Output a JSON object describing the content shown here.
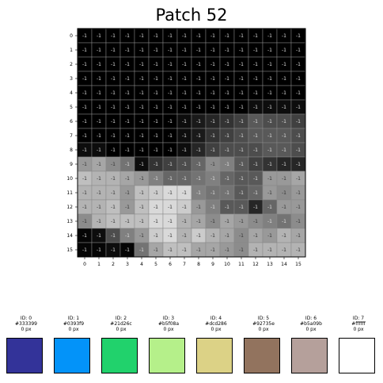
{
  "title": "Patch 52",
  "chart_data": {
    "type": "heatmap",
    "title": "Patch 52",
    "x_ticks": [
      "0",
      "1",
      "2",
      "3",
      "4",
      "5",
      "6",
      "7",
      "8",
      "9",
      "10",
      "11",
      "12",
      "13",
      "14",
      "15"
    ],
    "y_ticks": [
      "0",
      "1",
      "2",
      "3",
      "4",
      "5",
      "6",
      "7",
      "8",
      "9",
      "10",
      "11",
      "12",
      "13",
      "14",
      "15"
    ],
    "cell_label": "-1",
    "colormap": "gray",
    "gridlines": true,
    "values": [
      [
        0,
        0,
        0,
        0,
        0,
        0,
        0,
        0,
        0,
        0,
        0,
        0,
        0,
        0,
        0,
        0
      ],
      [
        0,
        0,
        0,
        0,
        0,
        0,
        0,
        0,
        0,
        0,
        0,
        0,
        0,
        0,
        0,
        0
      ],
      [
        0,
        0,
        0,
        0,
        0,
        0,
        0,
        0,
        0,
        0,
        0,
        0,
        0,
        0,
        0,
        0
      ],
      [
        0,
        0,
        0,
        0,
        0,
        0,
        0,
        0,
        0,
        0,
        0,
        0,
        0,
        0,
        0,
        0
      ],
      [
        0,
        0,
        0,
        0,
        0,
        0,
        0,
        0,
        0,
        0,
        0,
        0,
        0,
        0,
        0,
        0
      ],
      [
        0,
        0,
        0,
        0,
        0,
        0,
        0,
        0,
        0,
        0,
        0,
        0,
        0.05,
        0.05,
        0.05,
        0.05
      ],
      [
        0,
        0,
        0,
        0,
        0,
        0,
        0,
        0.05,
        0.1,
        0.15,
        0.2,
        0.25,
        0.35,
        0.3,
        0.3,
        0.25
      ],
      [
        0,
        0,
        0,
        0,
        0,
        0,
        0,
        0.05,
        0.1,
        0.2,
        0.25,
        0.3,
        0.35,
        0.35,
        0.35,
        0.3
      ],
      [
        0.05,
        0.05,
        0,
        0,
        0,
        0,
        0,
        0.05,
        0.15,
        0.25,
        0.3,
        0.3,
        0.3,
        0.35,
        0.35,
        0.3
      ],
      [
        0.6,
        0.65,
        0.55,
        0.45,
        0.05,
        0.2,
        0.25,
        0.3,
        0.4,
        0.55,
        0.5,
        0.35,
        0.25,
        0.2,
        0.15,
        0.15
      ],
      [
        0.75,
        0.7,
        0.7,
        0.65,
        0.6,
        0.5,
        0.4,
        0.4,
        0.45,
        0.5,
        0.4,
        0.35,
        0.35,
        0.6,
        0.6,
        0.65
      ],
      [
        0.7,
        0.7,
        0.7,
        0.6,
        0.75,
        0.8,
        0.85,
        0.85,
        0.5,
        0.45,
        0.45,
        0.35,
        0.4,
        0.6,
        0.55,
        0.6
      ],
      [
        0.7,
        0.7,
        0.75,
        0.6,
        0.75,
        0.85,
        0.85,
        0.8,
        0.6,
        0.5,
        0.35,
        0.35,
        0.15,
        0.4,
        0.6,
        0.6
      ],
      [
        0.55,
        0.7,
        0.75,
        0.75,
        0.75,
        0.85,
        0.85,
        0.7,
        0.65,
        0.55,
        0.65,
        0.6,
        0.55,
        0.5,
        0.45,
        0.55
      ],
      [
        0.02,
        0.05,
        0.3,
        0.5,
        0.6,
        0.8,
        0.85,
        0.7,
        0.8,
        0.7,
        0.65,
        0.55,
        0.65,
        0.6,
        0.7,
        0.65
      ],
      [
        0.02,
        0.02,
        0.05,
        0.02,
        0.45,
        0.65,
        0.75,
        0.75,
        0.65,
        0.65,
        0.6,
        0.55,
        0.7,
        0.7,
        0.7,
        0.7
      ]
    ]
  },
  "palette": [
    {
      "id": "ID: 0",
      "hex": "#333399",
      "px": "0 px",
      "color": "#333399"
    },
    {
      "id": "ID: 1",
      "hex": "#0393f9",
      "px": "0 px",
      "color": "#0393f9"
    },
    {
      "id": "ID: 2",
      "hex": "#21d26c",
      "px": "0 px",
      "color": "#21d26c"
    },
    {
      "id": "ID: 3",
      "hex": "#b5f08a",
      "px": "0 px",
      "color": "#b5f08a"
    },
    {
      "id": "ID: 4",
      "hex": "#dcd286",
      "px": "0 px",
      "color": "#dcd286"
    },
    {
      "id": "ID: 5",
      "hex": "#92735e",
      "px": "0 px",
      "color": "#92735e"
    },
    {
      "id": "ID: 6",
      "hex": "#b5a09b",
      "px": "0 px",
      "color": "#b5a09b"
    },
    {
      "id": "ID: 7",
      "hex": "#ffffff",
      "px": "0 px",
      "color": "#ffffff"
    }
  ]
}
